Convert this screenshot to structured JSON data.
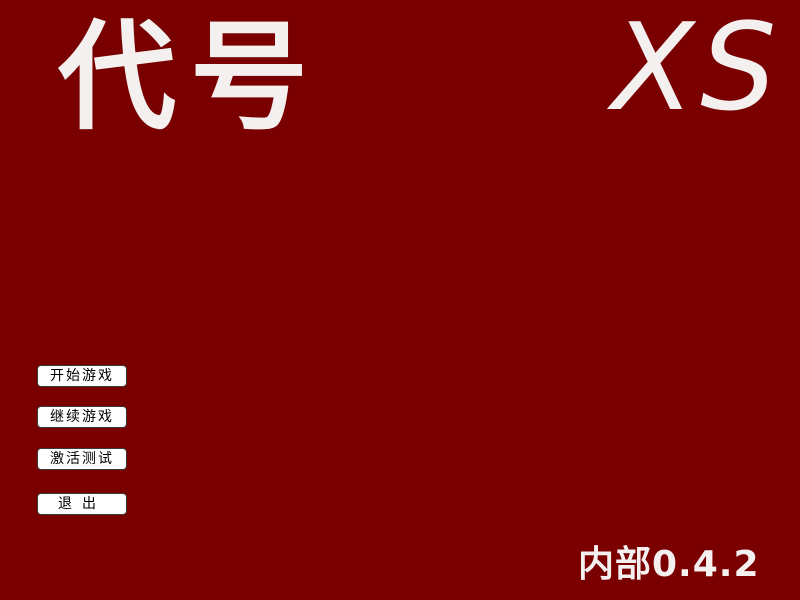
{
  "title": {
    "main": "代号",
    "sub": "XS"
  },
  "menu": {
    "start_label": "开始游戏",
    "continue_label": "继续游戏",
    "activate_label": "激活测试",
    "exit_label": "退出"
  },
  "version": "内部0.4.2",
  "colors": {
    "background": "#7a0000",
    "title_text": "#f4f0f0",
    "button_bg": "#ffffff",
    "button_text": "#000000"
  }
}
